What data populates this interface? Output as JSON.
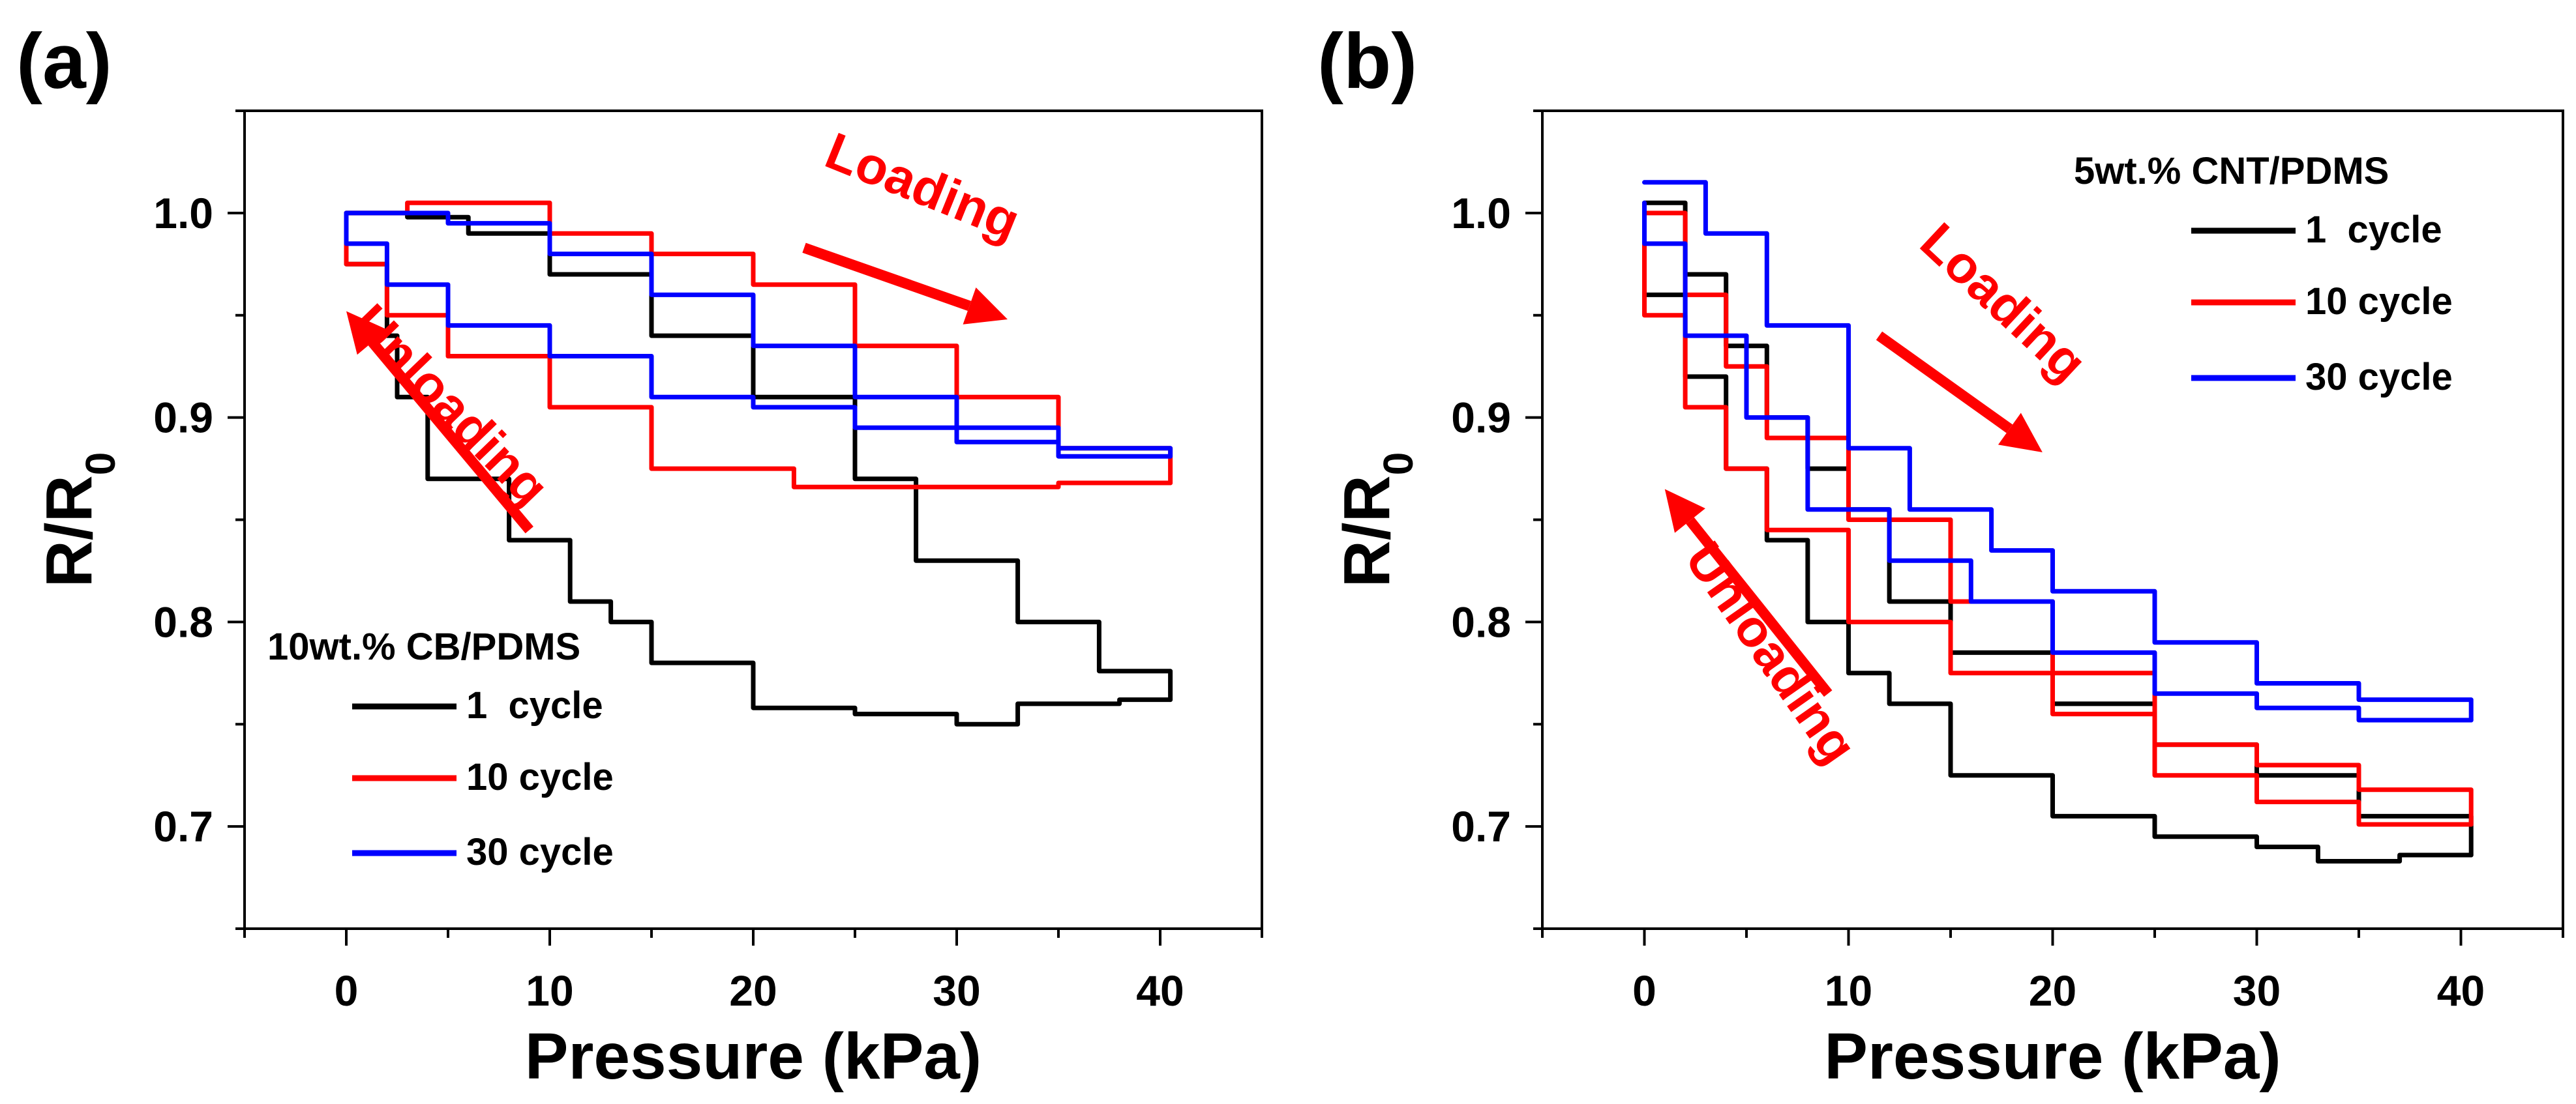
{
  "colors": {
    "series_1": "#000000",
    "series_10": "#ff0000",
    "series_30": "#0000ff",
    "annotation": "#ff0000"
  },
  "chart_data": [
    {
      "type": "line",
      "panel_label": "(a)",
      "xlabel": "Pressure (kPa)",
      "ylabel_main": "R/R",
      "ylabel_sub": "0",
      "xlim": [
        -5,
        45
      ],
      "ylim": [
        0.65,
        1.05
      ],
      "xticks": [
        0,
        10,
        20,
        30,
        40
      ],
      "yticks": [
        0.7,
        0.8,
        0.9,
        1.0
      ],
      "xtick_labels": [
        "0",
        "10",
        "20",
        "30",
        "40"
      ],
      "ytick_labels": [
        "0.7",
        "0.8",
        "0.9",
        "1.0"
      ],
      "legend_title": "10wt.% CB/PDMS",
      "legend_placement": "bottom-left",
      "annotations": [
        {
          "text": "Loading",
          "x": 28,
          "y": 1.005,
          "rotation": 22,
          "color": "#ff0000"
        },
        {
          "text": "Unloading",
          "x": 4.5,
          "y": 0.9,
          "rotation": 46,
          "color": "#ff0000"
        }
      ],
      "arrows": [
        {
          "x1": 22.5,
          "y1": 0.983,
          "x2": 32.5,
          "y2": 0.948,
          "dir": "down-right"
        },
        {
          "x1": 9,
          "y1": 0.845,
          "x2": 0,
          "y2": 0.952,
          "dir": "up-left"
        }
      ],
      "series": [
        {
          "name": "1  cycle",
          "color": "#000000",
          "loading": [
            [
              0,
              1.0
            ],
            [
              3,
              0.998
            ],
            [
              6,
              0.99
            ],
            [
              10,
              0.97
            ],
            [
              15,
              0.94
            ],
            [
              20,
              0.91
            ],
            [
              25,
              0.87
            ],
            [
              28,
              0.83
            ],
            [
              33,
              0.8
            ],
            [
              37,
              0.776
            ],
            [
              40.5,
              0.762
            ]
          ],
          "unloading": [
            [
              40.5,
              0.762
            ],
            [
              38,
              0.76
            ],
            [
              33,
              0.75
            ],
            [
              30,
              0.755
            ],
            [
              25,
              0.758
            ],
            [
              20,
              0.78
            ],
            [
              15,
              0.8
            ],
            [
              13,
              0.81
            ],
            [
              11,
              0.84
            ],
            [
              8,
              0.87
            ],
            [
              4,
              0.91
            ],
            [
              2.5,
              0.94
            ],
            [
              2,
              0.975
            ],
            [
              0,
              1.0
            ]
          ]
        },
        {
          "name": "10 cycle",
          "color": "#ff0000",
          "loading": [
            [
              0,
              1.0
            ],
            [
              3,
              1.005
            ],
            [
              10,
              0.99
            ],
            [
              15,
              0.98
            ],
            [
              20,
              0.965
            ],
            [
              25,
              0.935
            ],
            [
              30,
              0.91
            ],
            [
              35,
              0.885
            ],
            [
              40.5,
              0.868
            ]
          ],
          "unloading": [
            [
              40.5,
              0.868
            ],
            [
              35,
              0.866
            ],
            [
              30,
              0.866
            ],
            [
              25,
              0.866
            ],
            [
              22,
              0.875
            ],
            [
              15,
              0.905
            ],
            [
              10,
              0.93
            ],
            [
              5,
              0.95
            ],
            [
              2,
              0.975
            ],
            [
              0,
              1.0
            ]
          ]
        },
        {
          "name": "30 cycle",
          "color": "#0000ff",
          "loading": [
            [
              0,
              1.0
            ],
            [
              5,
              0.995
            ],
            [
              10,
              0.98
            ],
            [
              15,
              0.96
            ],
            [
              20,
              0.935
            ],
            [
              25,
              0.91
            ],
            [
              30,
              0.895
            ],
            [
              35,
              0.885
            ],
            [
              40.5,
              0.881
            ]
          ],
          "unloading": [
            [
              40.5,
              0.881
            ],
            [
              35,
              0.888
            ],
            [
              30,
              0.895
            ],
            [
              25,
              0.905
            ],
            [
              20,
              0.91
            ],
            [
              15,
              0.93
            ],
            [
              10,
              0.945
            ],
            [
              5,
              0.965
            ],
            [
              2,
              0.985
            ],
            [
              0,
              1.0
            ]
          ]
        }
      ]
    },
    {
      "type": "line",
      "panel_label": "(b)",
      "xlabel": "Pressure (kPa)",
      "ylabel_main": "R/R",
      "ylabel_sub": "0",
      "xlim": [
        -5,
        45
      ],
      "ylim": [
        0.65,
        1.05
      ],
      "xticks": [
        0,
        10,
        20,
        30,
        40
      ],
      "yticks": [
        0.7,
        0.8,
        0.9,
        1.0
      ],
      "xtick_labels": [
        "0",
        "10",
        "20",
        "30",
        "40"
      ],
      "ytick_labels": [
        "0.7",
        "0.8",
        "0.9",
        "1.0"
      ],
      "legend_title": "5wt.% CNT/PDMS",
      "legend_placement": "top-right",
      "annotations": [
        {
          "text": "Loading",
          "x": 17,
          "y": 0.95,
          "rotation": 43,
          "color": "#ff0000"
        },
        {
          "text": "Unloading",
          "x": 5.5,
          "y": 0.78,
          "rotation": 55,
          "color": "#ff0000"
        }
      ],
      "arrows": [
        {
          "x1": 11.5,
          "y1": 0.94,
          "x2": 19.5,
          "y2": 0.883,
          "dir": "down-right"
        },
        {
          "x1": 9,
          "y1": 0.765,
          "x2": 1,
          "y2": 0.865,
          "dir": "up-left"
        }
      ],
      "series": [
        {
          "name": "1  cycle",
          "color": "#000000",
          "loading": [
            [
              0,
              1.005
            ],
            [
              2,
              0.97
            ],
            [
              4,
              0.935
            ],
            [
              6,
              0.9
            ],
            [
              8,
              0.875
            ],
            [
              10,
              0.855
            ],
            [
              12,
              0.81
            ],
            [
              15,
              0.785
            ],
            [
              20,
              0.76
            ],
            [
              25,
              0.74
            ],
            [
              30,
              0.725
            ],
            [
              35,
              0.705
            ],
            [
              40.5,
              0.686
            ]
          ],
          "unloading": [
            [
              40.5,
              0.686
            ],
            [
              37,
              0.683
            ],
            [
              33,
              0.69
            ],
            [
              30,
              0.695
            ],
            [
              25,
              0.705
            ],
            [
              20,
              0.725
            ],
            [
              15,
              0.76
            ],
            [
              12,
              0.775
            ],
            [
              10,
              0.8
            ],
            [
              8,
              0.84
            ],
            [
              6,
              0.875
            ],
            [
              4,
              0.92
            ],
            [
              2,
              0.96
            ],
            [
              0,
              1.0
            ]
          ]
        },
        {
          "name": "10 cycle",
          "color": "#ff0000",
          "loading": [
            [
              0,
              1.0
            ],
            [
              2,
              0.96
            ],
            [
              4,
              0.925
            ],
            [
              6,
              0.89
            ],
            [
              10,
              0.85
            ],
            [
              15,
              0.81
            ],
            [
              20,
              0.775
            ],
            [
              25,
              0.74
            ],
            [
              30,
              0.73
            ],
            [
              35,
              0.718
            ],
            [
              40.5,
              0.701
            ]
          ],
          "unloading": [
            [
              40.5,
              0.701
            ],
            [
              35,
              0.712
            ],
            [
              30,
              0.725
            ],
            [
              25,
              0.755
            ],
            [
              20,
              0.775
            ],
            [
              15,
              0.8
            ],
            [
              10,
              0.845
            ],
            [
              6,
              0.875
            ],
            [
              4,
              0.905
            ],
            [
              2,
              0.95
            ],
            [
              0,
              0.985
            ]
          ]
        },
        {
          "name": "30 cycle",
          "color": "#0000ff",
          "loading": [
            [
              0,
              1.015
            ],
            [
              3,
              0.99
            ],
            [
              6,
              0.945
            ],
            [
              10,
              0.885
            ],
            [
              13,
              0.855
            ],
            [
              17,
              0.835
            ],
            [
              20,
              0.815
            ],
            [
              25,
              0.79
            ],
            [
              30,
              0.77
            ],
            [
              35,
              0.762
            ],
            [
              40.5,
              0.752
            ]
          ],
          "unloading": [
            [
              40.5,
              0.752
            ],
            [
              35,
              0.758
            ],
            [
              30,
              0.765
            ],
            [
              25,
              0.785
            ],
            [
              20,
              0.81
            ],
            [
              16,
              0.83
            ],
            [
              12,
              0.855
            ],
            [
              8,
              0.9
            ],
            [
              5,
              0.94
            ],
            [
              2,
              0.985
            ],
            [
              0,
              1.005
            ]
          ]
        }
      ]
    }
  ]
}
